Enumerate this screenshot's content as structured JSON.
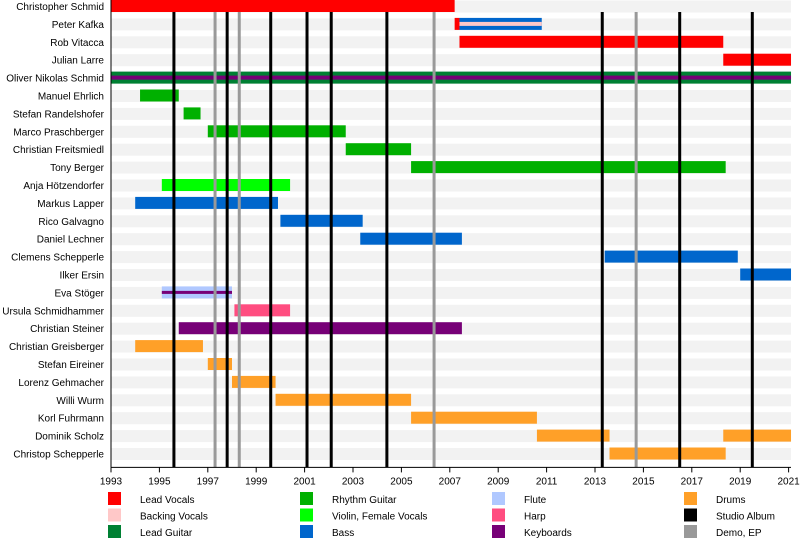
{
  "chart_data": {
    "type": "timeline",
    "xlim": [
      1993,
      2021.1
    ],
    "x_ticks": [
      1993,
      1995,
      1997,
      1999,
      2001,
      2003,
      2005,
      2007,
      2009,
      2011,
      2013,
      2015,
      2017,
      2019,
      2021
    ],
    "grid": false,
    "legend_placement": "bottom",
    "roles": {
      "lead_vocals": {
        "label": "Lead Vocals",
        "color": "#ff0000"
      },
      "backing_vocals": {
        "label": "Backing Vocals",
        "color": "#ffc8c8"
      },
      "lead_guitar": {
        "label": "Lead Guitar",
        "color": "#008033"
      },
      "rhythm_guitar": {
        "label": "Rhythm Guitar",
        "color": "#00b000"
      },
      "violin": {
        "label": "Violin, Female Vocals",
        "color": "#00ff00"
      },
      "bass": {
        "label": "Bass",
        "color": "#0066cc"
      },
      "flute": {
        "label": "Flute",
        "color": "#b0c8ff"
      },
      "harp": {
        "label": "Harp",
        "color": "#ff4d80"
      },
      "keyboards": {
        "label": "Keyboards",
        "color": "#770077"
      },
      "drums": {
        "label": "Drums",
        "color": "#ffa028"
      },
      "studio_album": {
        "label": "Studio Album",
        "color": "#000000"
      },
      "demo": {
        "label": "Demo, EP",
        "color": "#999999"
      }
    },
    "legend_order": [
      [
        "lead_vocals",
        "backing_vocals",
        "lead_guitar"
      ],
      [
        "rhythm_guitar",
        "violin",
        "bass"
      ],
      [
        "flute",
        "harp",
        "keyboards"
      ],
      [
        "drums",
        "studio_album",
        "demo"
      ]
    ],
    "members": [
      {
        "name": "Christopher Schmid",
        "periods": [
          {
            "role": "lead_vocals",
            "start": 1993,
            "end": 2007.2
          }
        ]
      },
      {
        "name": "Peter Kafka",
        "periods": [
          {
            "role": "lead_vocals",
            "start": 2007.2,
            "end": 2007.4
          },
          {
            "role": "bass",
            "start": 2007.4,
            "end": 2010.8,
            "stripe": "backing_vocals"
          }
        ]
      },
      {
        "name": "Rob Vitacca",
        "periods": [
          {
            "role": "lead_vocals",
            "start": 2007.4,
            "end": 2018.3
          }
        ]
      },
      {
        "name": "Julian Larre",
        "periods": [
          {
            "role": "lead_vocals",
            "start": 2018.3,
            "end": 2021.1
          }
        ]
      },
      {
        "name": "Oliver Nikolas Schmid",
        "periods": [
          {
            "role": "lead_guitar",
            "start": 1993,
            "end": 2021.1,
            "stripe": "keyboards"
          }
        ]
      },
      {
        "name": "Manuel Ehrlich",
        "periods": [
          {
            "role": "rhythm_guitar",
            "start": 1994.2,
            "end": 1995.8
          }
        ]
      },
      {
        "name": "Stefan Randelshofer",
        "periods": [
          {
            "role": "rhythm_guitar",
            "start": 1996.0,
            "end": 1996.7
          }
        ]
      },
      {
        "name": "Marco Praschberger",
        "periods": [
          {
            "role": "rhythm_guitar",
            "start": 1997.0,
            "end": 2002.7
          }
        ]
      },
      {
        "name": "Christian Freitsmiedl",
        "periods": [
          {
            "role": "rhythm_guitar",
            "start": 2002.7,
            "end": 2005.4
          }
        ]
      },
      {
        "name": "Tony Berger",
        "periods": [
          {
            "role": "rhythm_guitar",
            "start": 2005.4,
            "end": 2018.4
          }
        ]
      },
      {
        "name": "Anja Hötzendorfer",
        "periods": [
          {
            "role": "violin",
            "start": 1995.1,
            "end": 2000.4
          }
        ]
      },
      {
        "name": "Markus Lapper",
        "periods": [
          {
            "role": "bass",
            "start": 1994.0,
            "end": 1999.9
          }
        ]
      },
      {
        "name": "Rico Galvagno",
        "periods": [
          {
            "role": "bass",
            "start": 2000.0,
            "end": 2003.4
          }
        ]
      },
      {
        "name": "Daniel Lechner",
        "periods": [
          {
            "role": "bass",
            "start": 2003.3,
            "end": 2007.5
          }
        ]
      },
      {
        "name": "Clemens Schepperle",
        "periods": [
          {
            "role": "bass",
            "start": 2013.4,
            "end": 2018.9
          }
        ]
      },
      {
        "name": "Ilker Ersin",
        "periods": [
          {
            "role": "bass",
            "start": 2019.0,
            "end": 2021.1
          }
        ]
      },
      {
        "name": "Eva Stöger",
        "periods": [
          {
            "role": "flute",
            "start": 1995.1,
            "end": 1998.0,
            "stripe": "keyboards"
          }
        ]
      },
      {
        "name": "Ursula Schmidhammer",
        "periods": [
          {
            "role": "harp",
            "start": 1998.1,
            "end": 2000.4
          }
        ]
      },
      {
        "name": "Christian Steiner",
        "periods": [
          {
            "role": "keyboards",
            "start": 1995.8,
            "end": 2007.5
          }
        ]
      },
      {
        "name": "Christian Greisberger",
        "periods": [
          {
            "role": "drums",
            "start": 1994.0,
            "end": 1996.8
          }
        ]
      },
      {
        "name": "Stefan Eireiner",
        "periods": [
          {
            "role": "drums",
            "start": 1997.0,
            "end": 1998.0
          }
        ]
      },
      {
        "name": "Lorenz Gehmacher",
        "periods": [
          {
            "role": "drums",
            "start": 1998.0,
            "end": 1999.8
          }
        ]
      },
      {
        "name": "Willi Wurm",
        "periods": [
          {
            "role": "drums",
            "start": 1999.8,
            "end": 2005.4
          }
        ]
      },
      {
        "name": "Korl Fuhrmann",
        "periods": [
          {
            "role": "drums",
            "start": 2005.4,
            "end": 2010.6
          }
        ]
      },
      {
        "name": "Dominik Scholz",
        "periods": [
          {
            "role": "drums",
            "start": 2010.6,
            "end": 2013.6
          },
          {
            "role": "drums",
            "start": 2018.3,
            "end": 2021.1
          }
        ]
      },
      {
        "name": "Christop Schepperle",
        "periods": [
          {
            "role": "drums",
            "start": 2013.6,
            "end": 2018.4
          }
        ]
      }
    ],
    "releases": [
      {
        "type": "studio_album",
        "year": 1995.6
      },
      {
        "type": "demo",
        "year": 1997.3
      },
      {
        "type": "studio_album",
        "year": 1997.8
      },
      {
        "type": "demo",
        "year": 1998.3
      },
      {
        "type": "studio_album",
        "year": 1999.6
      },
      {
        "type": "studio_album",
        "year": 2001.1
      },
      {
        "type": "studio_album",
        "year": 2002.1
      },
      {
        "type": "studio_album",
        "year": 2004.4
      },
      {
        "type": "demo",
        "year": 2006.35
      },
      {
        "type": "studio_album",
        "year": 2013.3
      },
      {
        "type": "demo",
        "year": 2014.7
      },
      {
        "type": "studio_album",
        "year": 2016.5
      },
      {
        "type": "studio_album",
        "year": 2019.5
      }
    ]
  }
}
